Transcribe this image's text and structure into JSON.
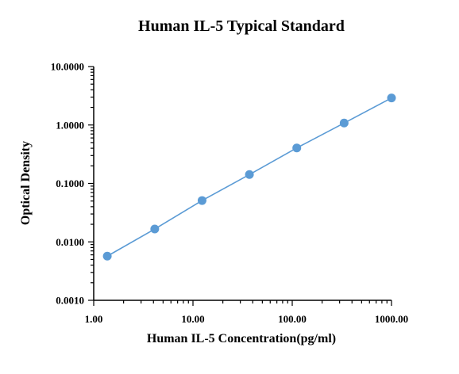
{
  "chart_data": {
    "type": "scatter",
    "title": "Human IL-5 Typical Standard",
    "xlabel": "Human IL-5 Concentration(pg/ml)",
    "ylabel": "Optical Density",
    "x_scale": "log",
    "y_scale": "log",
    "xlim": [
      1,
      1000
    ],
    "ylim": [
      0.001,
      10
    ],
    "x_ticks": [
      1,
      10,
      100,
      1000
    ],
    "x_tick_labels": [
      "1.00",
      "10.00",
      "100.00",
      "1000.00"
    ],
    "y_ticks": [
      0.001,
      0.01,
      0.1,
      1,
      10
    ],
    "y_tick_labels": [
      "0.0010",
      "0.0100",
      "0.1000",
      "1.0000",
      "10.0000"
    ],
    "grid": false,
    "marker_color": "#5b9bd5",
    "line_color": "#5b9bd5",
    "series": [
      {
        "x": [
          1.37,
          4.12,
          12.35,
          37.04,
          111.1,
          333.3,
          1000
        ],
        "y": [
          0.0057,
          0.0166,
          0.051,
          0.142,
          0.405,
          1.08,
          2.9
        ]
      }
    ]
  }
}
